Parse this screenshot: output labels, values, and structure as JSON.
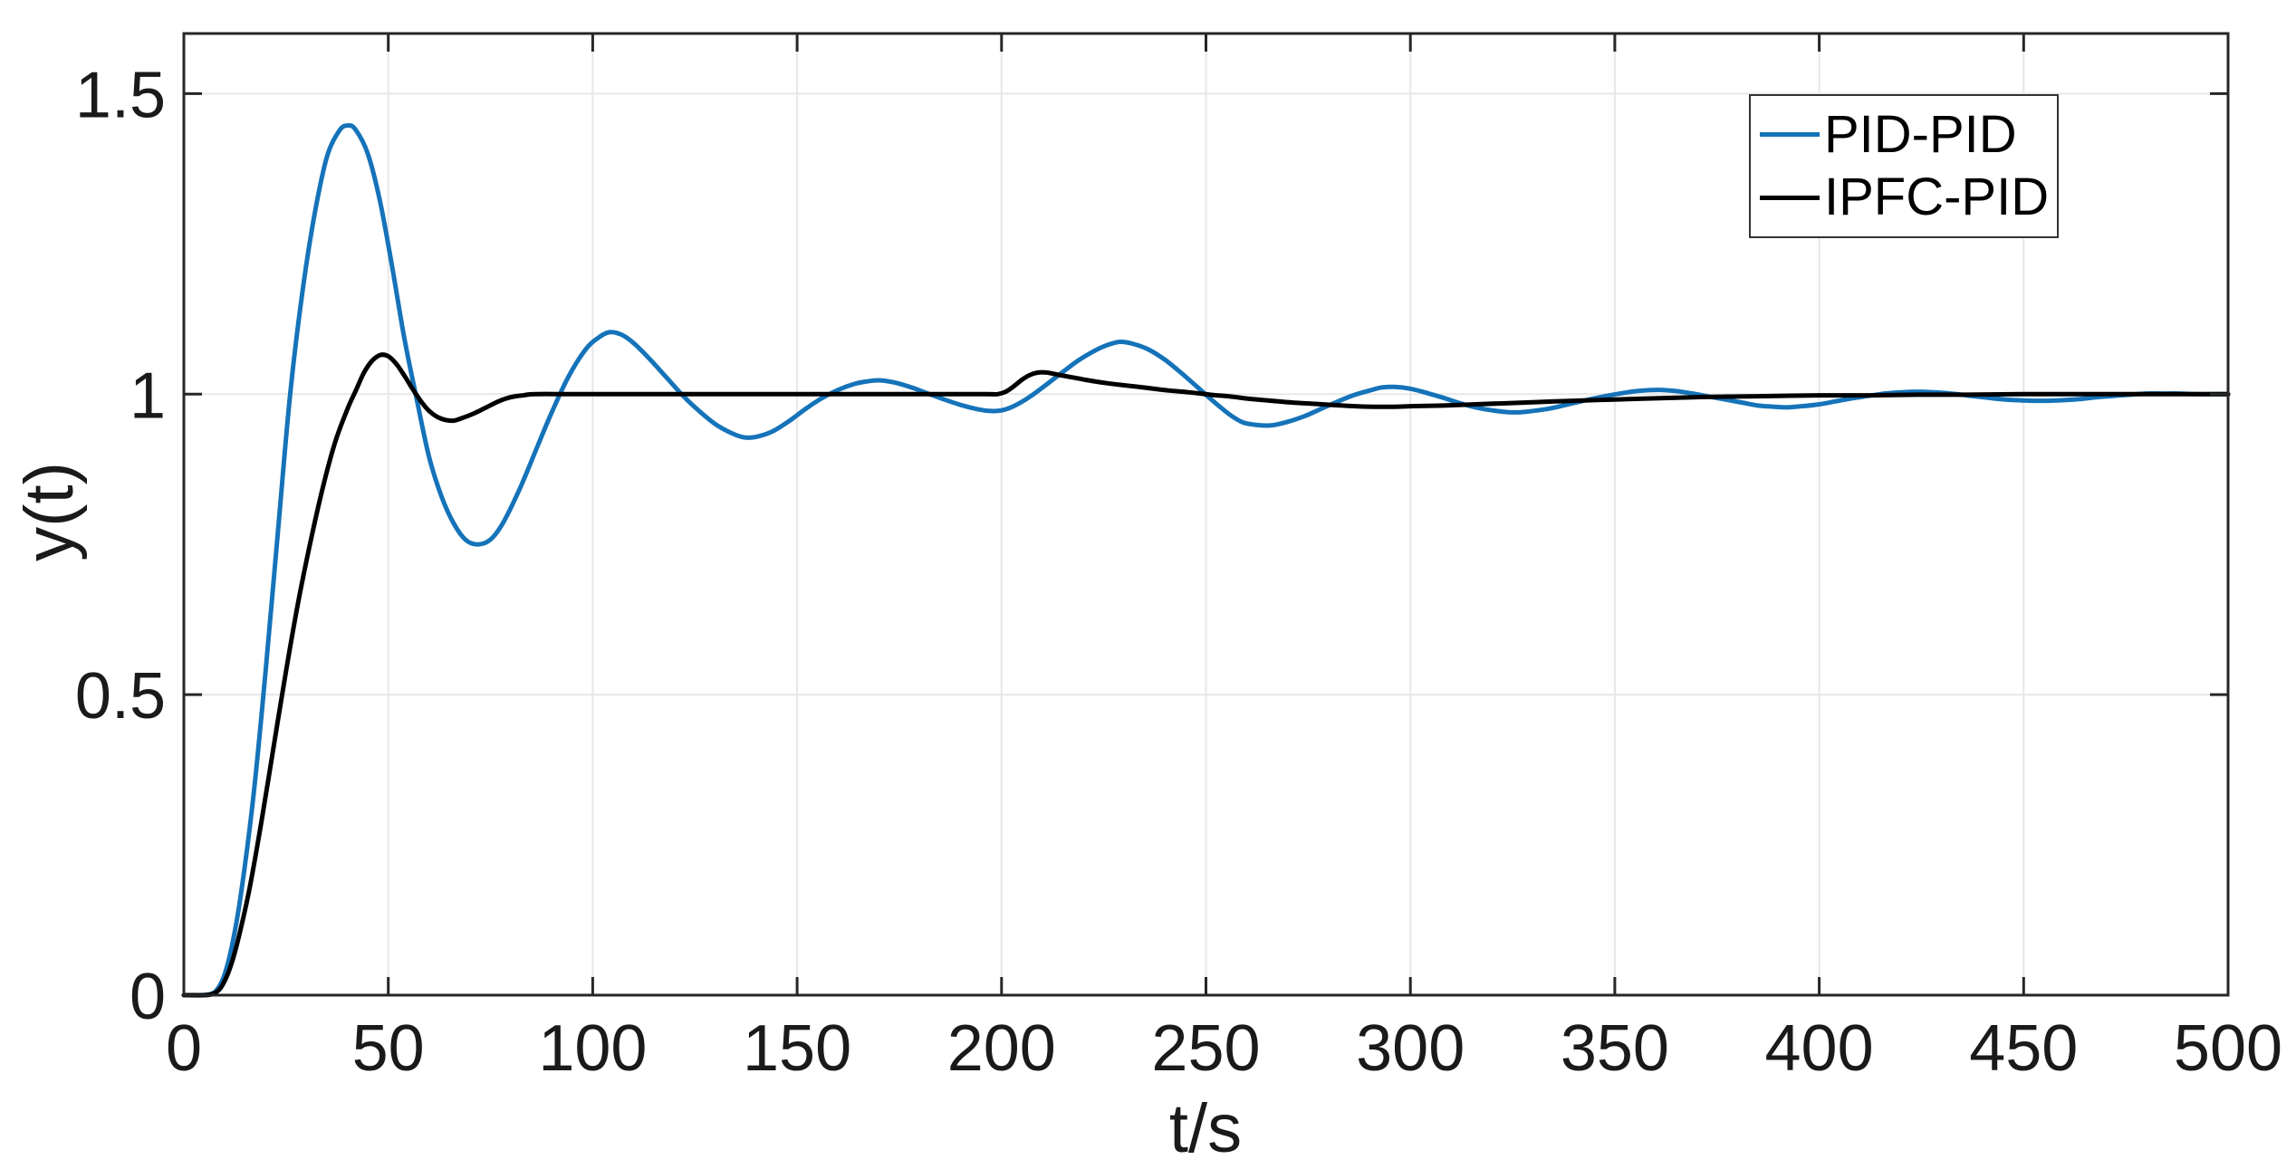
{
  "figure": {
    "background": "#ffffff",
    "axis_color": "#262626",
    "grid_color": "#e7e7e7",
    "tick_length": 20
  },
  "chart_data": {
    "type": "line",
    "title": "",
    "xlabel": "t/s",
    "ylabel": "y(t)",
    "xlim": [
      0,
      500
    ],
    "ylim": [
      0,
      1.6
    ],
    "xticks": [
      0,
      50,
      100,
      150,
      200,
      250,
      300,
      350,
      400,
      450,
      500
    ],
    "xtick_labels": [
      "0",
      "50",
      "100",
      "150",
      "200",
      "250",
      "300",
      "350",
      "400",
      "450",
      "500"
    ],
    "yticks": [
      0,
      0.5,
      1,
      1.5
    ],
    "ytick_labels": [
      "0",
      "0.5",
      "1",
      "1.5"
    ],
    "grid": true,
    "legend_position": "top-right",
    "series": [
      {
        "name": "PID-PID",
        "color": "#1573b9",
        "line_width": 5,
        "points": [
          [
            0,
            0
          ],
          [
            4,
            0
          ],
          [
            6,
            0.001
          ],
          [
            8,
            0.008
          ],
          [
            10,
            0.035
          ],
          [
            12,
            0.09
          ],
          [
            14,
            0.17
          ],
          [
            17,
            0.33
          ],
          [
            20,
            0.54
          ],
          [
            23,
            0.77
          ],
          [
            26,
            1.0
          ],
          [
            29,
            1.17
          ],
          [
            32,
            1.3
          ],
          [
            35,
            1.395
          ],
          [
            38,
            1.438
          ],
          [
            40,
            1.447
          ],
          [
            42,
            1.44
          ],
          [
            45,
            1.4
          ],
          [
            48,
            1.32
          ],
          [
            51,
            1.21
          ],
          [
            54,
            1.09
          ],
          [
            57,
            0.99
          ],
          [
            60,
            0.895
          ],
          [
            63,
            0.83
          ],
          [
            66,
            0.785
          ],
          [
            69,
            0.757
          ],
          [
            72,
            0.75
          ],
          [
            75,
            0.758
          ],
          [
            78,
            0.785
          ],
          [
            82,
            0.84
          ],
          [
            86,
            0.905
          ],
          [
            90,
            0.97
          ],
          [
            94,
            1.028
          ],
          [
            98,
            1.072
          ],
          [
            101,
            1.092
          ],
          [
            104,
            1.103
          ],
          [
            107,
            1.099
          ],
          [
            110,
            1.085
          ],
          [
            114,
            1.058
          ],
          [
            118,
            1.028
          ],
          [
            122,
            0.998
          ],
          [
            126,
            0.972
          ],
          [
            130,
            0.95
          ],
          [
            134,
            0.935
          ],
          [
            137,
            0.928
          ],
          [
            140,
            0.929
          ],
          [
            144,
            0.938
          ],
          [
            148,
            0.955
          ],
          [
            152,
            0.975
          ],
          [
            156,
            0.993
          ],
          [
            160,
            1.007
          ],
          [
            164,
            1.017
          ],
          [
            167,
            1.021
          ],
          [
            170,
            1.023
          ],
          [
            174,
            1.019
          ],
          [
            178,
            1.011
          ],
          [
            182,
            1.001
          ],
          [
            186,
            0.991
          ],
          [
            190,
            0.982
          ],
          [
            194,
            0.975
          ],
          [
            197,
            0.972
          ],
          [
            200,
            0.973
          ],
          [
            203,
            0.98
          ],
          [
            207,
            0.996
          ],
          [
            211,
            1.016
          ],
          [
            215,
            1.037
          ],
          [
            219,
            1.057
          ],
          [
            223,
            1.073
          ],
          [
            226,
            1.082
          ],
          [
            229,
            1.087
          ],
          [
            232,
            1.084
          ],
          [
            236,
            1.074
          ],
          [
            240,
            1.057
          ],
          [
            244,
            1.035
          ],
          [
            248,
            1.011
          ],
          [
            252,
            0.987
          ],
          [
            256,
            0.965
          ],
          [
            259,
            0.953
          ],
          [
            262,
            0.949
          ],
          [
            266,
            0.948
          ],
          [
            270,
            0.954
          ],
          [
            274,
            0.963
          ],
          [
            278,
            0.975
          ],
          [
            282,
            0.987
          ],
          [
            286,
            0.998
          ],
          [
            290,
            1.006
          ],
          [
            293,
            1.011
          ],
          [
            296,
            1.012
          ],
          [
            300,
            1.009
          ],
          [
            304,
            1.002
          ],
          [
            308,
            0.994
          ],
          [
            312,
            0.985
          ],
          [
            316,
            0.978
          ],
          [
            320,
            0.973
          ],
          [
            324,
            0.97
          ],
          [
            327,
            0.97
          ],
          [
            330,
            0.972
          ],
          [
            334,
            0.976
          ],
          [
            338,
            0.982
          ],
          [
            343,
            0.99
          ],
          [
            348,
            0.997
          ],
          [
            353,
            1.003
          ],
          [
            357,
            1.006
          ],
          [
            361,
            1.007
          ],
          [
            365,
            1.005
          ],
          [
            369,
            1.001
          ],
          [
            373,
            0.996
          ],
          [
            377,
            0.991
          ],
          [
            381,
            0.986
          ],
          [
            385,
            0.981
          ],
          [
            389,
            0.979
          ],
          [
            392,
            0.978
          ],
          [
            396,
            0.98
          ],
          [
            400,
            0.983
          ],
          [
            404,
            0.988
          ],
          [
            408,
            0.993
          ],
          [
            412,
            0.997
          ],
          [
            416,
            1.001
          ],
          [
            420,
            1.003
          ],
          [
            424,
            1.004
          ],
          [
            428,
            1.003
          ],
          [
            432,
            1.001
          ],
          [
            436,
            0.998
          ],
          [
            440,
            0.995
          ],
          [
            444,
            0.992
          ],
          [
            448,
            0.99
          ],
          [
            452,
            0.989
          ],
          [
            456,
            0.989
          ],
          [
            460,
            0.99
          ],
          [
            464,
            0.992
          ],
          [
            468,
            0.995
          ],
          [
            472,
            0.997
          ],
          [
            476,
            0.999
          ],
          [
            480,
            1.001
          ],
          [
            484,
            1.001
          ],
          [
            488,
            1.001
          ],
          [
            492,
            1.0
          ],
          [
            496,
            1.0
          ],
          [
            500,
            1.0
          ]
        ]
      },
      {
        "name": "IPFC-PID",
        "color": "#000000",
        "line_width": 5,
        "points": [
          [
            0,
            0
          ],
          [
            5,
            0
          ],
          [
            7,
            0.002
          ],
          [
            9,
            0.012
          ],
          [
            11,
            0.04
          ],
          [
            13,
            0.085
          ],
          [
            16,
            0.175
          ],
          [
            19,
            0.29
          ],
          [
            22,
            0.415
          ],
          [
            25,
            0.54
          ],
          [
            28,
            0.655
          ],
          [
            31,
            0.755
          ],
          [
            34,
            0.845
          ],
          [
            37,
            0.92
          ],
          [
            40,
            0.975
          ],
          [
            42,
            1.005
          ],
          [
            44,
            1.035
          ],
          [
            46,
            1.055
          ],
          [
            48,
            1.065
          ],
          [
            50,
            1.063
          ],
          [
            52,
            1.05
          ],
          [
            54,
            1.03
          ],
          [
            56,
            1.008
          ],
          [
            58,
            0.988
          ],
          [
            60,
            0.972
          ],
          [
            62,
            0.962
          ],
          [
            64,
            0.957
          ],
          [
            66,
            0.956
          ],
          [
            68,
            0.96
          ],
          [
            71,
            0.968
          ],
          [
            74,
            0.978
          ],
          [
            77,
            0.988
          ],
          [
            80,
            0.995
          ],
          [
            83,
            0.998
          ],
          [
            86,
            1.0
          ],
          [
            95,
            1.0
          ],
          [
            110,
            1.0
          ],
          [
            130,
            1.0
          ],
          [
            150,
            1.0
          ],
          [
            170,
            1.0
          ],
          [
            185,
            1.0
          ],
          [
            196,
            1.0
          ],
          [
            199,
            1.0
          ],
          [
            201,
            1.004
          ],
          [
            203,
            1.013
          ],
          [
            205,
            1.024
          ],
          [
            207,
            1.032
          ],
          [
            209,
            1.036
          ],
          [
            211,
            1.036
          ],
          [
            214,
            1.032
          ],
          [
            218,
            1.027
          ],
          [
            222,
            1.022
          ],
          [
            226,
            1.018
          ],
          [
            231,
            1.014
          ],
          [
            236,
            1.01
          ],
          [
            241,
            1.006
          ],
          [
            246,
            1.003
          ],
          [
            251,
            0.999
          ],
          [
            256,
            0.996
          ],
          [
            261,
            0.992
          ],
          [
            266,
            0.989
          ],
          [
            271,
            0.986
          ],
          [
            276,
            0.984
          ],
          [
            281,
            0.982
          ],
          [
            286,
            0.98
          ],
          [
            291,
            0.979
          ],
          [
            296,
            0.979
          ],
          [
            301,
            0.98
          ],
          [
            308,
            0.981
          ],
          [
            316,
            0.983
          ],
          [
            324,
            0.985
          ],
          [
            332,
            0.987
          ],
          [
            340,
            0.989
          ],
          [
            350,
            0.991
          ],
          [
            360,
            0.993
          ],
          [
            370,
            0.995
          ],
          [
            380,
            0.996
          ],
          [
            390,
            0.997
          ],
          [
            400,
            0.998
          ],
          [
            412,
            0.998
          ],
          [
            424,
            0.999
          ],
          [
            436,
            0.999
          ],
          [
            450,
            1.0
          ],
          [
            465,
            1.0
          ],
          [
            480,
            1.0
          ],
          [
            500,
            1.0
          ]
        ]
      }
    ]
  }
}
